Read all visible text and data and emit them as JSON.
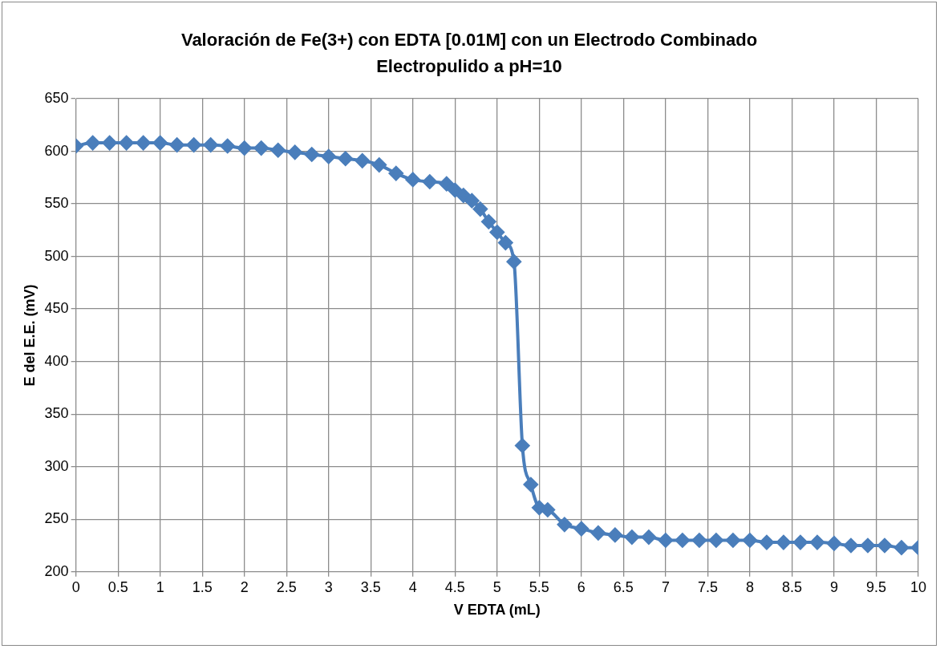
{
  "chart_data": {
    "type": "line",
    "title": "Valoración de Fe(3+) con EDTA [0.01M] con un Electrodo Combinado Electropulido a pH=10",
    "xlabel": "V EDTA (mL)",
    "ylabel": "E del E.E. (mV)",
    "series": [
      {
        "color": "#4a7ebb",
        "x": [
          0,
          0.2,
          0.4,
          0.6,
          0.8,
          1,
          1.2,
          1.4,
          1.6,
          1.8,
          2,
          2.2,
          2.4,
          2.6,
          2.8,
          3,
          3.2,
          3.4,
          3.6,
          3.8,
          4,
          4.2,
          4.4,
          4.5,
          4.6,
          4.7,
          4.8,
          4.9,
          5,
          5.1,
          5.2,
          5.3,
          5.4,
          5.5,
          5.6,
          5.8,
          6,
          6.2,
          6.4,
          6.6,
          6.8,
          7,
          7.2,
          7.4,
          7.6,
          7.8,
          8,
          8.2,
          8.4,
          8.6,
          8.8,
          9,
          9.2,
          9.4,
          9.6,
          9.8,
          10
        ],
        "values": [
          605,
          608,
          608,
          608,
          608,
          608,
          606,
          606,
          606,
          605,
          603,
          603,
          601,
          599,
          597,
          595,
          593,
          591,
          587,
          579,
          573,
          571,
          569,
          563,
          558,
          553,
          545,
          533,
          523,
          513,
          495,
          320,
          283,
          261,
          259,
          245,
          241,
          237,
          235,
          233,
          233,
          230,
          230,
          230,
          230,
          230,
          230,
          228,
          228,
          228,
          228,
          227,
          225,
          225,
          225,
          223,
          223
        ]
      }
    ],
    "xlim": [
      0,
      10
    ],
    "xticks": [
      0,
      0.5,
      1,
      1.5,
      2,
      2.5,
      3,
      3.5,
      4,
      4.5,
      5,
      5.5,
      6,
      6.5,
      7,
      7.5,
      8,
      8.5,
      9,
      9.5,
      10
    ],
    "ylim": [
      200,
      650
    ],
    "yticks": [
      200,
      250,
      300,
      350,
      400,
      450,
      500,
      550,
      600,
      650
    ],
    "grid": true,
    "legend": false,
    "marker": "diamond",
    "line_style": "solid"
  }
}
